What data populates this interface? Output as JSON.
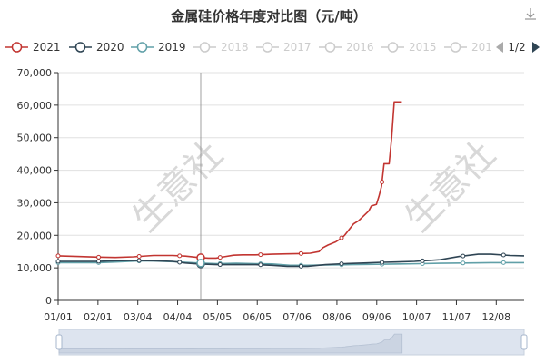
{
  "chart_data": {
    "type": "line",
    "title": "金属硅价格年度对比图（元/吨）",
    "ylim": [
      0,
      70000
    ],
    "yticks": [
      "0",
      "10,000",
      "20,000",
      "30,000",
      "40,000",
      "50,000",
      "60,000",
      "70,000"
    ],
    "x_ticks": [
      "01/01",
      "02/01",
      "03/04",
      "04/04",
      "05/05",
      "06/05",
      "07/06",
      "08/06",
      "09/06",
      "10/07",
      "11/07",
      "12/08"
    ],
    "legend_page": "1/2",
    "watermark": "生意社",
    "legend": [
      {
        "name": "2021",
        "color": "#c23531",
        "active": true
      },
      {
        "name": "2020",
        "color": "#2f4554",
        "active": true
      },
      {
        "name": "2019",
        "color": "#61a0a8",
        "active": true
      },
      {
        "name": "2018",
        "color": "#cccccc",
        "active": false
      },
      {
        "name": "2017",
        "color": "#cccccc",
        "active": false
      },
      {
        "name": "2016",
        "color": "#cccccc",
        "active": false
      },
      {
        "name": "2015",
        "color": "#cccccc",
        "active": false
      },
      {
        "name": "201",
        "color": "#cccccc",
        "active": false
      }
    ],
    "series": [
      {
        "name": "2021",
        "color": "#c23531",
        "points": [
          [
            0,
            13700
          ],
          [
            15,
            13500
          ],
          [
            31,
            13300
          ],
          [
            45,
            13200
          ],
          [
            59,
            13400
          ],
          [
            75,
            13800
          ],
          [
            90,
            13800
          ],
          [
            100,
            13600
          ],
          [
            110,
            13200
          ],
          [
            118,
            13000
          ],
          [
            124,
            13000
          ],
          [
            130,
            13400
          ],
          [
            138,
            13900
          ],
          [
            145,
            14000
          ],
          [
            155,
            14000
          ],
          [
            168,
            14200
          ],
          [
            180,
            14300
          ],
          [
            190,
            14400
          ],
          [
            198,
            14500
          ],
          [
            205,
            15000
          ],
          [
            208,
            16200
          ],
          [
            212,
            17000
          ],
          [
            218,
            18000
          ],
          [
            222,
            19000
          ],
          [
            225,
            20000
          ],
          [
            228,
            21500
          ],
          [
            232,
            23500
          ],
          [
            236,
            24500
          ],
          [
            240,
            26000
          ],
          [
            244,
            27500
          ],
          [
            246,
            29000
          ],
          [
            250,
            29500
          ],
          [
            252,
            32000
          ],
          [
            254,
            35000
          ],
          [
            256,
            42000
          ],
          [
            260,
            42000
          ],
          [
            262,
            50000
          ],
          [
            264,
            61000
          ],
          [
            270,
            61000
          ]
        ]
      },
      {
        "name": "2020",
        "color": "#2f4554",
        "points": [
          [
            0,
            12000
          ],
          [
            31,
            12000
          ],
          [
            45,
            12200
          ],
          [
            60,
            12300
          ],
          [
            75,
            12200
          ],
          [
            90,
            12000
          ],
          [
            100,
            11500
          ],
          [
            110,
            11200
          ],
          [
            125,
            11000
          ],
          [
            140,
            11000
          ],
          [
            155,
            11000
          ],
          [
            168,
            10800
          ],
          [
            180,
            10500
          ],
          [
            196,
            10500
          ],
          [
            210,
            11000
          ],
          [
            225,
            11300
          ],
          [
            240,
            11500
          ],
          [
            255,
            11700
          ],
          [
            265,
            11800
          ],
          [
            280,
            12000
          ],
          [
            300,
            12500
          ],
          [
            315,
            13500
          ],
          [
            330,
            14200
          ],
          [
            340,
            14200
          ],
          [
            355,
            13800
          ],
          [
            366,
            13700
          ]
        ]
      },
      {
        "name": "2019",
        "color": "#61a0a8",
        "points": [
          [
            0,
            11600
          ],
          [
            31,
            11600
          ],
          [
            45,
            11800
          ],
          [
            62,
            12100
          ],
          [
            75,
            12100
          ],
          [
            90,
            11900
          ],
          [
            100,
            11700
          ],
          [
            110,
            11500
          ],
          [
            125,
            11300
          ],
          [
            140,
            11400
          ],
          [
            155,
            11300
          ],
          [
            168,
            11200
          ],
          [
            182,
            10800
          ],
          [
            196,
            10800
          ],
          [
            210,
            10900
          ],
          [
            230,
            11000
          ],
          [
            250,
            11100
          ],
          [
            270,
            11200
          ],
          [
            285,
            11300
          ],
          [
            300,
            11400
          ],
          [
            320,
            11500
          ],
          [
            340,
            11600
          ],
          [
            366,
            11600
          ]
        ]
      }
    ]
  }
}
